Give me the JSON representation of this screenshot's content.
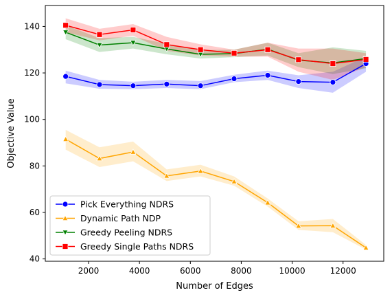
{
  "chart_data": {
    "type": "line",
    "title": "",
    "xlabel": "Number of Edges",
    "ylabel": "Objective Value",
    "xlim": [
      300,
      13600
    ],
    "ylim": [
      39,
      149
    ],
    "x_ticks": [
      2000,
      4000,
      6000,
      8000,
      10000,
      12000
    ],
    "y_ticks": [
      40,
      60,
      80,
      100,
      120,
      140
    ],
    "x": [
      1100,
      2430,
      3750,
      5070,
      6400,
      7720,
      9040,
      10250,
      11600,
      12900
    ],
    "grid": false,
    "legend_position": "lower-left",
    "series": [
      {
        "name": "Pick Everything NDRS",
        "color": "#0000ff",
        "marker": "circle",
        "values": [
          118.5,
          115,
          114.5,
          115.2,
          114.5,
          117.5,
          119,
          116.3,
          116,
          124
        ],
        "lower": [
          115.5,
          113.2,
          113,
          113.5,
          113,
          116,
          117,
          113.5,
          111.5,
          120.5
        ],
        "upper": [
          121,
          117,
          116.2,
          117,
          116.5,
          119.2,
          121,
          119,
          120.5,
          127
        ]
      },
      {
        "name": "Dynamic Path NDP",
        "color": "#ffa500",
        "marker": "triangle-up",
        "values": [
          91.5,
          83.2,
          86,
          75.7,
          77.8,
          73.3,
          64.2,
          54.2,
          54.3,
          44.8
        ],
        "lower": [
          87,
          79.5,
          82,
          73.5,
          75.5,
          71.5,
          62.5,
          52.5,
          51.5,
          44
        ],
        "upper": [
          95.5,
          88,
          90.5,
          78.5,
          80.5,
          75.5,
          66,
          56.2,
          57.2,
          46
        ]
      },
      {
        "name": "Greedy Peeling NDRS",
        "color": "#008000",
        "marker": "triangle-down",
        "values": [
          137.5,
          132,
          133,
          130.3,
          128,
          128.3,
          130.2,
          125.5,
          124.3,
          126.2
        ],
        "lower": [
          134.5,
          129,
          130.5,
          128,
          126.2,
          126.8,
          127.5,
          122.5,
          119.5,
          122
        ],
        "upper": [
          140.5,
          135,
          135.5,
          132.5,
          129.8,
          130,
          133,
          128.5,
          131,
          129.5
        ]
      },
      {
        "name": "Greedy Single Paths NDRS",
        "color": "#ff0000",
        "marker": "square",
        "values": [
          140.5,
          136.5,
          138.5,
          132.2,
          130,
          128.5,
          130,
          125.7,
          124,
          125.8
        ],
        "lower": [
          137.5,
          134,
          136,
          129.5,
          127.5,
          127,
          127,
          120.5,
          117,
          122.5
        ],
        "upper": [
          143.5,
          139,
          141,
          135.5,
          132.3,
          130,
          133,
          130.5,
          130.5,
          128.5
        ]
      }
    ]
  }
}
